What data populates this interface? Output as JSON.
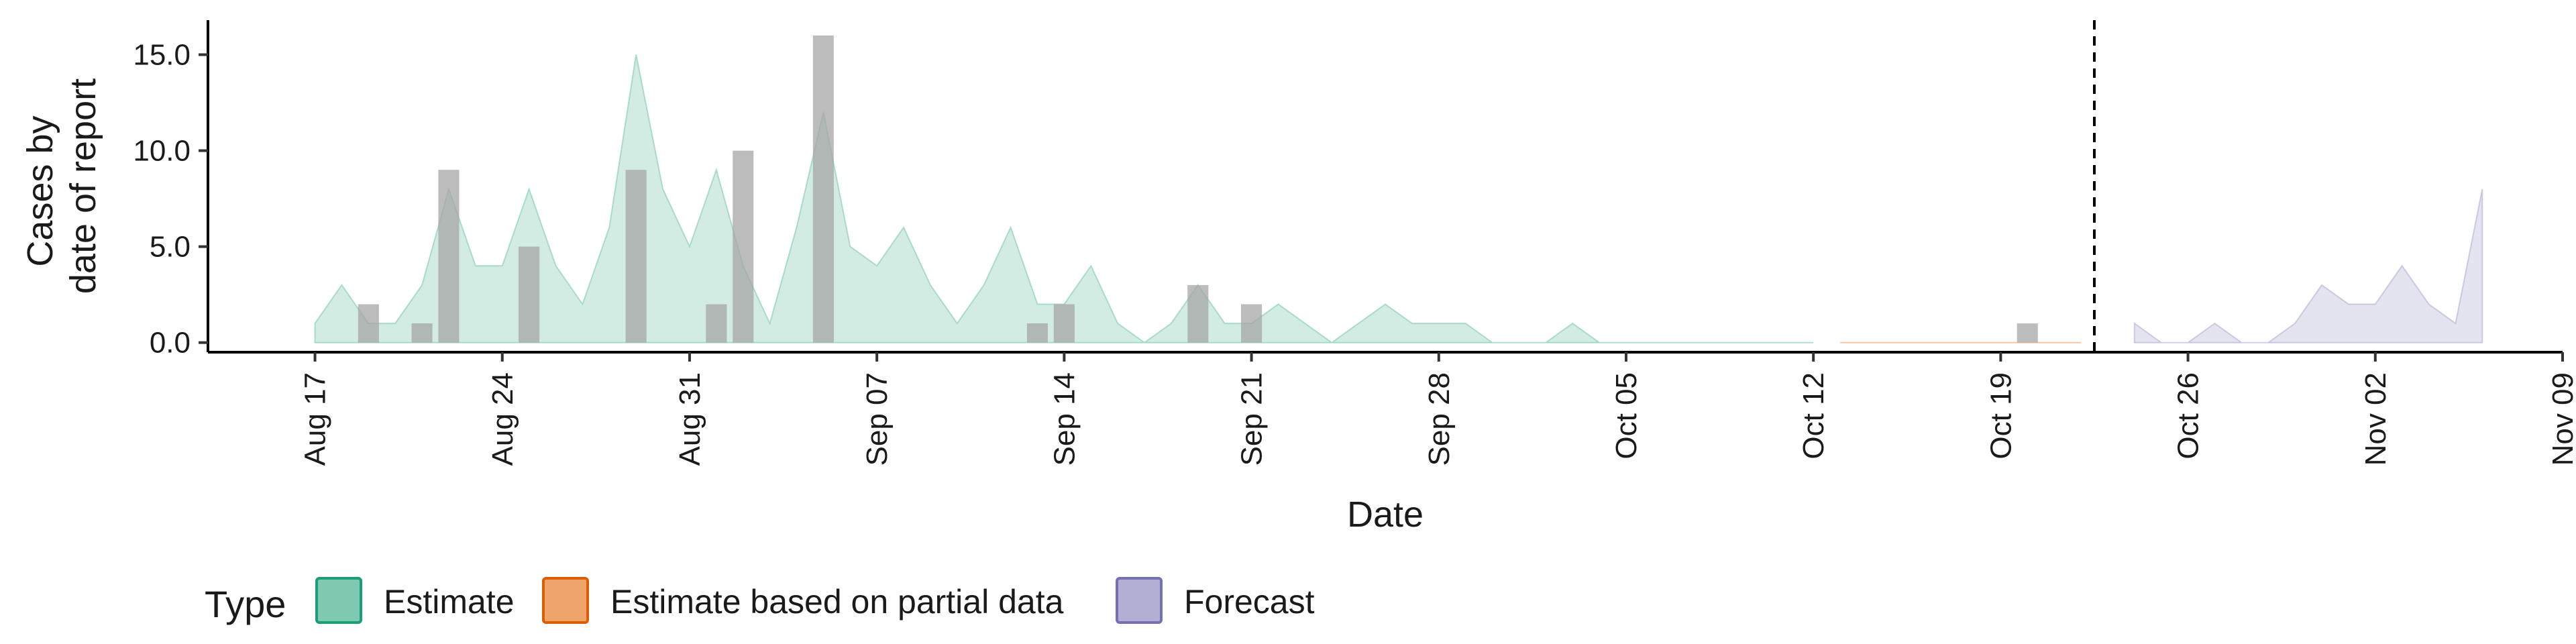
{
  "chart_data": {
    "type": "area",
    "xlabel": "Date",
    "ylabel_lines": [
      "Cases by",
      "date of report"
    ],
    "x_range": [
      "2020-08-13",
      "2020-11-09"
    ],
    "ylim": [
      -0.5,
      16.8
    ],
    "y_ticks": [
      0,
      5,
      10,
      15
    ],
    "y_tick_labels": [
      "0.0",
      "5.0",
      "10.0",
      "15.0"
    ],
    "x_ticks": [
      "2020-08-17",
      "2020-08-24",
      "2020-08-31",
      "2020-09-07",
      "2020-09-14",
      "2020-09-21",
      "2020-09-28",
      "2020-10-05",
      "2020-10-12",
      "2020-10-19",
      "2020-10-26",
      "2020-11-02",
      "2020-11-09"
    ],
    "x_tick_labels": [
      "Aug 17",
      "Aug 24",
      "Aug 31",
      "Sep 07",
      "Sep 14",
      "Sep 21",
      "Sep 28",
      "Oct 05",
      "Oct 12",
      "Oct 19",
      "Oct 26",
      "Nov 02",
      "Nov 09"
    ],
    "forecast_line_date": "2020-10-23",
    "grid": false,
    "legend_position": "bottom-left",
    "legend": {
      "title": "Type",
      "items": [
        {
          "key": "estimate",
          "label": "Estimate",
          "fill": "#7fc9b0",
          "stroke": "#1b9e77"
        },
        {
          "key": "partial",
          "label": "Estimate based on partial data",
          "fill": "#eea46a",
          "stroke": "#d95f02"
        },
        {
          "key": "forecast",
          "label": "Forecast",
          "fill": "#b2aed4",
          "stroke": "#7570b3"
        }
      ]
    },
    "series": [
      {
        "name": "Estimate",
        "color": "#1b9e77",
        "points": [
          [
            "2020-08-17",
            1
          ],
          [
            "2020-08-18",
            3
          ],
          [
            "2020-08-19",
            1
          ],
          [
            "2020-08-20",
            1
          ],
          [
            "2020-08-21",
            3
          ],
          [
            "2020-08-22",
            8
          ],
          [
            "2020-08-23",
            4
          ],
          [
            "2020-08-24",
            4
          ],
          [
            "2020-08-25",
            8
          ],
          [
            "2020-08-26",
            4
          ],
          [
            "2020-08-27",
            2
          ],
          [
            "2020-08-28",
            6
          ],
          [
            "2020-08-29",
            15
          ],
          [
            "2020-08-30",
            8
          ],
          [
            "2020-08-31",
            5
          ],
          [
            "2020-09-01",
            9
          ],
          [
            "2020-09-02",
            4
          ],
          [
            "2020-09-03",
            1
          ],
          [
            "2020-09-04",
            6
          ],
          [
            "2020-09-05",
            12
          ],
          [
            "2020-09-06",
            5
          ],
          [
            "2020-09-07",
            4
          ],
          [
            "2020-09-08",
            6
          ],
          [
            "2020-09-09",
            3
          ],
          [
            "2020-09-10",
            1
          ],
          [
            "2020-09-11",
            3
          ],
          [
            "2020-09-12",
            6
          ],
          [
            "2020-09-13",
            2
          ],
          [
            "2020-09-14",
            2
          ],
          [
            "2020-09-15",
            4
          ],
          [
            "2020-09-16",
            1
          ],
          [
            "2020-09-17",
            0
          ],
          [
            "2020-09-18",
            1
          ],
          [
            "2020-09-19",
            3
          ],
          [
            "2020-09-20",
            1
          ],
          [
            "2020-09-21",
            1
          ],
          [
            "2020-09-22",
            2
          ],
          [
            "2020-09-23",
            1
          ],
          [
            "2020-09-24",
            0
          ],
          [
            "2020-09-25",
            1
          ],
          [
            "2020-09-26",
            2
          ],
          [
            "2020-09-27",
            1
          ],
          [
            "2020-09-28",
            1
          ],
          [
            "2020-09-29",
            1
          ],
          [
            "2020-09-30",
            0
          ],
          [
            "2020-10-01",
            0
          ],
          [
            "2020-10-02",
            0
          ],
          [
            "2020-10-03",
            1
          ],
          [
            "2020-10-04",
            0
          ],
          [
            "2020-10-05",
            0
          ],
          [
            "2020-10-06",
            0
          ],
          [
            "2020-10-07",
            0
          ],
          [
            "2020-10-08",
            0
          ],
          [
            "2020-10-09",
            0
          ],
          [
            "2020-10-10",
            0
          ],
          [
            "2020-10-11",
            0
          ],
          [
            "2020-10-12",
            0
          ]
        ]
      },
      {
        "name": "Estimate based on partial data",
        "color": "#d95f02",
        "points": [
          [
            "2020-10-13",
            0
          ],
          [
            "2020-10-14",
            0
          ],
          [
            "2020-10-15",
            0
          ],
          [
            "2020-10-16",
            0
          ],
          [
            "2020-10-17",
            0
          ],
          [
            "2020-10-18",
            0
          ],
          [
            "2020-10-19",
            0
          ],
          [
            "2020-10-20",
            0
          ],
          [
            "2020-10-21",
            0
          ],
          [
            "2020-10-22",
            0
          ]
        ]
      },
      {
        "name": "Forecast",
        "color": "#7570b3",
        "points": [
          [
            "2020-10-24",
            1
          ],
          [
            "2020-10-25",
            0
          ],
          [
            "2020-10-26",
            0
          ],
          [
            "2020-10-27",
            1
          ],
          [
            "2020-10-28",
            0
          ],
          [
            "2020-10-29",
            0
          ],
          [
            "2020-10-30",
            1
          ],
          [
            "2020-10-31",
            3
          ],
          [
            "2020-11-01",
            2
          ],
          [
            "2020-11-02",
            2
          ],
          [
            "2020-11-03",
            4
          ],
          [
            "2020-11-04",
            2
          ],
          [
            "2020-11-05",
            1
          ],
          [
            "2020-11-06",
            8
          ]
        ]
      }
    ],
    "observed_bars": [
      [
        "2020-08-19",
        2
      ],
      [
        "2020-08-21",
        1
      ],
      [
        "2020-08-22",
        9
      ],
      [
        "2020-08-25",
        5
      ],
      [
        "2020-08-29",
        9
      ],
      [
        "2020-09-01",
        2
      ],
      [
        "2020-09-02",
        10
      ],
      [
        "2020-09-05",
        16
      ],
      [
        "2020-09-13",
        1
      ],
      [
        "2020-09-14",
        2
      ],
      [
        "2020-09-19",
        3
      ],
      [
        "2020-09-21",
        2
      ],
      [
        "2020-10-20",
        1
      ]
    ]
  }
}
